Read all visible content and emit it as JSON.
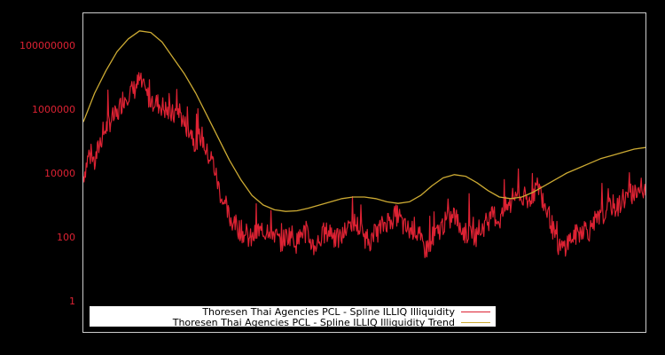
{
  "chart_data": {
    "type": "line",
    "title": "",
    "xlabel": "",
    "ylabel": "",
    "yscale": "log",
    "ylim": [
      0.1,
      1000000000000
    ],
    "y_ticks": [
      {
        "label": "1",
        "value": 1
      },
      {
        "label": "100",
        "value": 100
      },
      {
        "label": "10000",
        "value": 10000
      },
      {
        "label": "1000000",
        "value": 1000000
      },
      {
        "label": "100000000",
        "value": 100000000
      }
    ],
    "x_ticks": [],
    "grid": false,
    "legend_position": "lower left",
    "series": [
      {
        "name": "Thoresen Thai Agencies PCL - Spline ILLIQ Illiquidity",
        "color": "#dd2233",
        "x_frac": [
          0,
          0.01,
          0.02,
          0.03,
          0.04,
          0.05,
          0.06,
          0.07,
          0.08,
          0.09,
          0.1,
          0.11,
          0.12,
          0.13,
          0.14,
          0.15,
          0.16,
          0.17,
          0.18,
          0.19,
          0.2,
          0.21,
          0.22,
          0.23,
          0.24,
          0.25,
          0.26,
          0.27,
          0.28,
          0.29,
          0.3,
          0.31,
          0.32,
          0.33,
          0.34,
          0.35,
          0.36,
          0.37,
          0.38,
          0.39,
          0.4,
          0.41,
          0.42,
          0.43,
          0.44,
          0.45,
          0.46,
          0.47,
          0.48,
          0.49,
          0.5,
          0.51,
          0.52,
          0.53,
          0.54,
          0.55,
          0.56,
          0.57,
          0.58,
          0.59,
          0.6,
          0.61,
          0.62,
          0.63,
          0.64,
          0.65,
          0.66,
          0.67,
          0.68,
          0.69,
          0.7,
          0.71,
          0.72,
          0.73,
          0.74,
          0.75,
          0.76,
          0.77,
          0.78,
          0.79,
          0.8,
          0.81,
          0.82,
          0.83,
          0.84,
          0.85,
          0.86,
          0.87,
          0.88,
          0.89,
          0.9,
          0.91,
          0.92,
          0.93,
          0.94,
          0.95,
          0.96,
          0.97,
          0.98,
          0.99,
          1.0
        ],
        "log10_values": [
          3.9,
          4.6,
          4.3,
          5.0,
          5.4,
          5.7,
          5.8,
          6.3,
          6.5,
          6.6,
          6.9,
          6.5,
          6.3,
          6.2,
          6.1,
          5.9,
          5.8,
          6.0,
          5.5,
          5.4,
          4.9,
          5.2,
          4.6,
          4.4,
          3.6,
          3.0,
          2.6,
          2.4,
          2.2,
          2.0,
          1.9,
          2.2,
          2.1,
          2.3,
          2.1,
          1.8,
          2.0,
          2.1,
          1.8,
          2.2,
          2.0,
          1.7,
          1.9,
          2.1,
          2.2,
          1.9,
          2.0,
          2.3,
          2.5,
          2.3,
          2.0,
          1.9,
          2.1,
          2.3,
          2.5,
          2.6,
          2.7,
          2.3,
          2.2,
          2.3,
          1.8,
          1.6,
          2.0,
          2.1,
          2.4,
          2.5,
          2.7,
          2.3,
          2.1,
          2.2,
          2.0,
          2.3,
          2.5,
          2.7,
          2.5,
          2.9,
          3.0,
          3.4,
          3.2,
          3.0,
          3.4,
          3.6,
          3.0,
          2.6,
          1.9,
          1.6,
          1.8,
          2.0,
          2.1,
          2.3,
          2.2,
          2.4,
          2.6,
          2.8,
          3.0,
          2.9,
          3.2,
          3.3,
          3.4,
          3.5,
          3.3
        ]
      },
      {
        "name": "Thoresen Thai Agencies PCL - Spline ILLIQ Illiquidity Trend",
        "color": "#ccaa33",
        "x_frac": [
          0,
          0.02,
          0.04,
          0.06,
          0.08,
          0.1,
          0.12,
          0.14,
          0.16,
          0.18,
          0.2,
          0.22,
          0.24,
          0.26,
          0.28,
          0.3,
          0.32,
          0.34,
          0.36,
          0.38,
          0.4,
          0.42,
          0.44,
          0.46,
          0.48,
          0.5,
          0.52,
          0.54,
          0.56,
          0.58,
          0.6,
          0.62,
          0.64,
          0.66,
          0.68,
          0.7,
          0.72,
          0.74,
          0.76,
          0.78,
          0.8,
          0.82,
          0.84,
          0.86,
          0.88,
          0.9,
          0.92,
          0.94,
          0.96,
          0.98,
          1.0
        ],
        "log10_values": [
          5.6,
          6.5,
          7.2,
          7.8,
          8.2,
          8.45,
          8.4,
          8.1,
          7.6,
          7.1,
          6.5,
          5.8,
          5.1,
          4.4,
          3.8,
          3.3,
          3.0,
          2.85,
          2.8,
          2.82,
          2.9,
          3.0,
          3.1,
          3.2,
          3.25,
          3.25,
          3.2,
          3.1,
          3.05,
          3.1,
          3.3,
          3.6,
          3.85,
          3.95,
          3.9,
          3.7,
          3.45,
          3.25,
          3.2,
          3.25,
          3.4,
          3.6,
          3.8,
          4.0,
          4.15,
          4.3,
          4.45,
          4.55,
          4.65,
          4.75,
          4.8
        ]
      }
    ]
  },
  "legend": {
    "items": [
      {
        "label": "Thoresen Thai Agencies PCL - Spline ILLIQ Illiquidity",
        "color": "#dd2233"
      },
      {
        "label": "Thoresen Thai Agencies PCL - Spline ILLIQ Illiquidity Trend",
        "color": "#ccaa33"
      }
    ]
  },
  "colors": {
    "background": "#000000",
    "frame": "#cccccc",
    "tick_label": "#dd2233",
    "legend_bg": "#ffffff"
  }
}
